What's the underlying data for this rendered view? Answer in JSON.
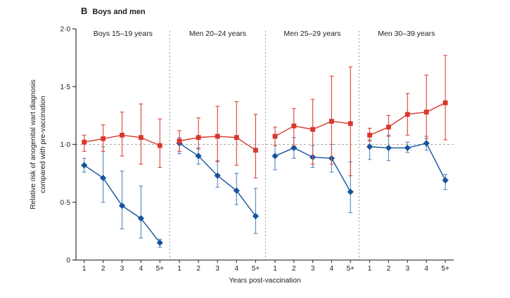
{
  "header": {
    "section_label": "B",
    "title": "Boys and men"
  },
  "chart_data": {
    "type": "line",
    "xlabel": "Years post-vaccination",
    "ylabel_line1": "Relative risk of anogenital wart diagnosis",
    "ylabel_line2": "compared with pre-vaccination",
    "ylim": [
      0,
      2.0
    ],
    "yticks": [
      0,
      0.5,
      1.0,
      1.5,
      2.0
    ],
    "ytick_labels": [
      "0",
      "0·5",
      "1·0",
      "1·5",
      "2·0"
    ],
    "x_tick_labels": [
      "1",
      "2",
      "3",
      "4",
      "5+"
    ],
    "reference_line": 1.0,
    "grid": false,
    "legend": "none",
    "colors": {
      "red": "#d8382c",
      "red_error": "#df5044",
      "blue": "#15539e",
      "blue_error": "#6191c2",
      "reference_line": "#a8a8a8",
      "separator": "#9b9b9b",
      "axis": "#404040",
      "text": "#1d1d1d"
    },
    "panels": [
      {
        "title": "Boys 15–19 years",
        "series": [
          {
            "name": "blue-diamonds",
            "marker": "diamond",
            "color": "#15539e",
            "error_color": "#6191c2",
            "values": [
              0.82,
              0.71,
              0.47,
              0.36,
              0.15
            ],
            "ci_low": [
              0.76,
              0.5,
              0.27,
              0.19,
              0.11
            ],
            "ci_high": [
              0.88,
              0.98,
              0.77,
              0.64,
              0.18
            ]
          },
          {
            "name": "red-squares",
            "marker": "square",
            "color": "#d8382c",
            "error_color": "#df5044",
            "values": [
              1.02,
              1.05,
              1.08,
              1.06,
              0.99
            ],
            "ci_low": [
              0.94,
              0.94,
              0.9,
              0.83,
              0.8
            ],
            "ci_high": [
              1.08,
              1.17,
              1.28,
              1.35,
              1.22
            ]
          }
        ]
      },
      {
        "title": "Men 20–24 years",
        "series": [
          {
            "name": "blue-diamonds",
            "marker": "diamond",
            "color": "#15539e",
            "error_color": "#6191c2",
            "values": [
              1.01,
              0.9,
              0.73,
              0.6,
              0.38
            ],
            "ci_low": [
              0.92,
              0.83,
              0.63,
              0.48,
              0.23
            ],
            "ci_high": [
              1.06,
              0.97,
              0.86,
              0.75,
              0.62
            ]
          },
          {
            "name": "red-squares",
            "marker": "square",
            "color": "#d8382c",
            "error_color": "#df5044",
            "values": [
              1.03,
              1.06,
              1.07,
              1.06,
              0.95
            ],
            "ci_low": [
              0.94,
              0.96,
              0.85,
              0.82,
              0.71
            ],
            "ci_high": [
              1.12,
              1.23,
              1.33,
              1.37,
              1.26
            ]
          }
        ]
      },
      {
        "title": "Men 25–29 years",
        "series": [
          {
            "name": "blue-diamonds",
            "marker": "diamond",
            "color": "#15539e",
            "error_color": "#6191c2",
            "values": [
              0.9,
              0.97,
              0.89,
              0.88,
              0.59
            ],
            "ci_low": [
              0.78,
              0.88,
              0.8,
              0.76,
              0.41
            ],
            "ci_high": [
              0.99,
              1.06,
              0.99,
              1.0,
              0.85
            ]
          },
          {
            "name": "red-squares",
            "marker": "square",
            "color": "#d8382c",
            "error_color": "#df5044",
            "values": [
              1.07,
              1.16,
              1.13,
              1.2,
              1.18
            ],
            "ci_low": [
              0.99,
              0.99,
              0.83,
              0.83,
              0.73
            ],
            "ci_high": [
              1.15,
              1.31,
              1.39,
              1.59,
              1.67
            ]
          }
        ]
      },
      {
        "title": "Men 30–39 years",
        "series": [
          {
            "name": "blue-diamonds",
            "marker": "diamond",
            "color": "#15539e",
            "error_color": "#6191c2",
            "values": [
              0.98,
              0.97,
              0.97,
              1.01,
              0.69
            ],
            "ci_low": [
              0.87,
              0.86,
              0.93,
              0.95,
              0.61
            ],
            "ci_high": [
              1.04,
              1.08,
              1.02,
              1.07,
              0.74
            ]
          },
          {
            "name": "red-squares",
            "marker": "square",
            "color": "#d8382c",
            "error_color": "#df5044",
            "values": [
              1.08,
              1.15,
              1.26,
              1.28,
              1.36
            ],
            "ci_low": [
              1.03,
              1.07,
              1.08,
              1.05,
              1.04
            ],
            "ci_high": [
              1.14,
              1.25,
              1.44,
              1.6,
              1.77
            ]
          }
        ]
      }
    ]
  }
}
